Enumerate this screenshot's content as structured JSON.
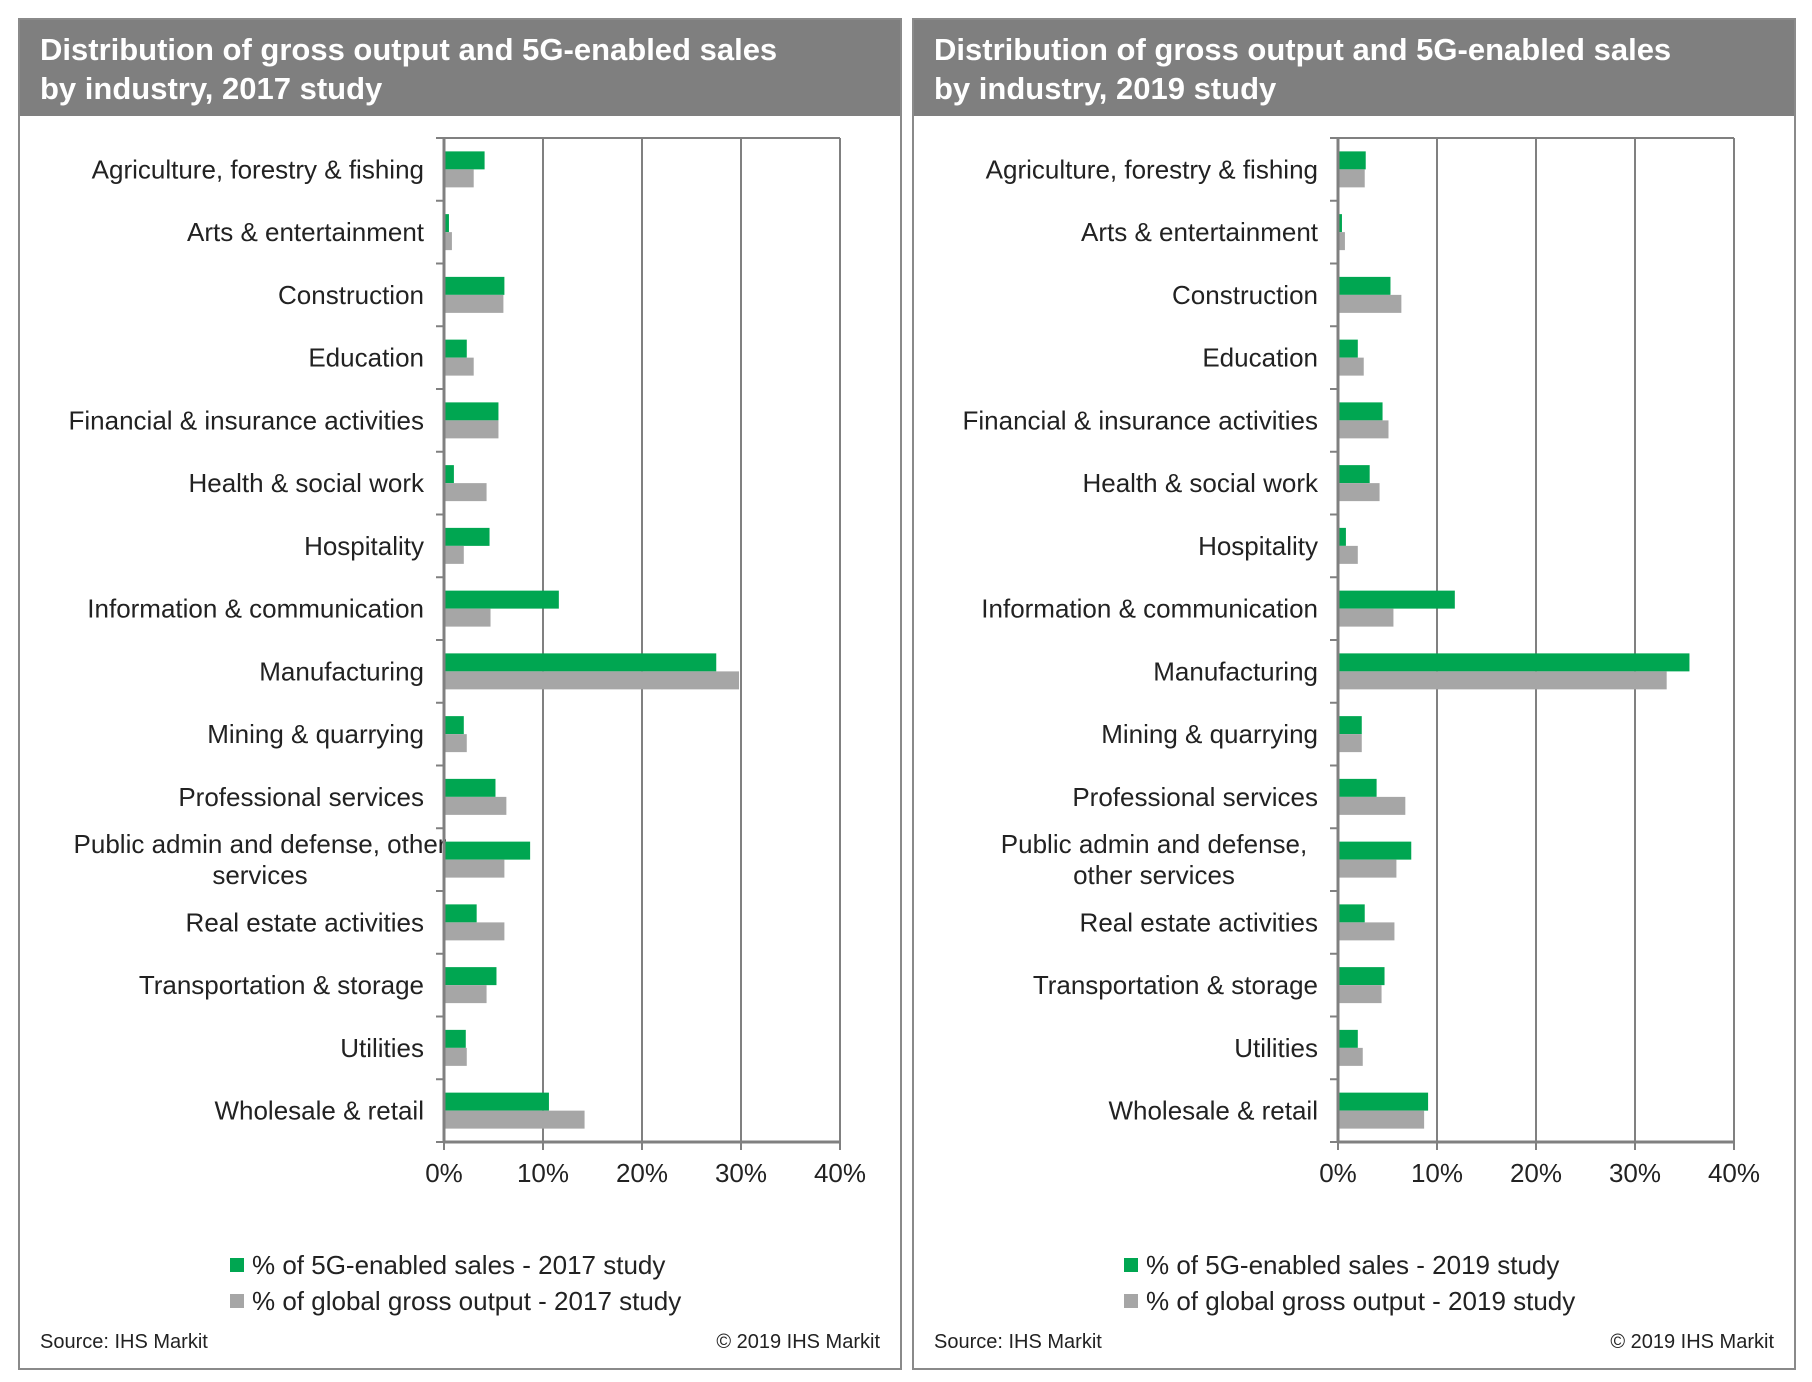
{
  "colors": {
    "sales": "#00a651",
    "output": "#a6a6a6",
    "header": "#7f7f7f",
    "axis": "#808080",
    "grid": "#808080"
  },
  "chart_data": [
    {
      "type": "bar",
      "orientation": "horizontal",
      "title": "Distribution of gross output and 5G-enabled sales by industry, 2017 study",
      "title_lines": [
        "Distribution of gross output and 5G-enabled sales",
        "by industry, 2017 study"
      ],
      "categories": [
        "Agriculture, forestry & fishing",
        "Arts & entertainment",
        "Construction",
        "Education",
        "Financial & insurance activities",
        "Health & social work",
        "Hospitality",
        "Information & communication",
        "Manufacturing",
        "Mining & quarrying",
        "Professional services",
        "Public admin and defense, other services",
        "Real estate activities",
        "Transportation & storage",
        "Utilities",
        "Wholesale & retail"
      ],
      "category_lines": [
        [
          "Agriculture, forestry & fishing"
        ],
        [
          "Arts & entertainment"
        ],
        [
          "Construction"
        ],
        [
          "Education"
        ],
        [
          "Financial & insurance activities"
        ],
        [
          "Health & social work"
        ],
        [
          "Hospitality"
        ],
        [
          "Information & communication"
        ],
        [
          "Manufacturing"
        ],
        [
          "Mining & quarrying"
        ],
        [
          "Professional services"
        ],
        [
          "Public admin and defense, other",
          "services"
        ],
        [
          "Real estate activities"
        ],
        [
          "Transportation & storage"
        ],
        [
          "Utilities"
        ],
        [
          "Wholesale & retail"
        ]
      ],
      "series": [
        {
          "name": "% of 5G-enabled sales - 2017 study",
          "values": [
            4.1,
            0.5,
            6.1,
            2.3,
            5.5,
            1.0,
            4.6,
            11.6,
            27.5,
            2.0,
            5.2,
            8.7,
            3.3,
            5.3,
            2.2,
            10.6
          ]
        },
        {
          "name": "% of global gross output - 2017 study",
          "values": [
            3.0,
            0.8,
            6.0,
            3.0,
            5.5,
            4.3,
            2.0,
            4.7,
            29.8,
            2.3,
            6.3,
            6.1,
            6.1,
            4.3,
            2.3,
            14.2
          ]
        }
      ],
      "xlim": [
        0,
        40
      ],
      "xticks": [
        "0%",
        "10%",
        "20%",
        "30%",
        "40%"
      ],
      "grid": true,
      "legend_position": "bottom"
    },
    {
      "type": "bar",
      "orientation": "horizontal",
      "title": "Distribution of gross output and 5G-enabled sales by industry, 2019 study",
      "title_lines": [
        "Distribution of gross output and 5G-enabled sales",
        "by industry, 2019 study"
      ],
      "categories": [
        "Agriculture, forestry & fishing",
        "Arts & entertainment",
        "Construction",
        "Education",
        "Financial & insurance activities",
        "Health & social work",
        "Hospitality",
        "Information & communication",
        "Manufacturing",
        "Mining & quarrying",
        "Professional services",
        "Public admin and defense, other services",
        "Real estate activities",
        "Transportation & storage",
        "Utilities",
        "Wholesale & retail"
      ],
      "category_lines": [
        [
          "Agriculture, forestry & fishing"
        ],
        [
          "Arts & entertainment"
        ],
        [
          "Construction"
        ],
        [
          "Education"
        ],
        [
          "Financial & insurance activities"
        ],
        [
          "Health & social work"
        ],
        [
          "Hospitality"
        ],
        [
          "Information & communication"
        ],
        [
          "Manufacturing"
        ],
        [
          "Mining & quarrying"
        ],
        [
          "Professional services"
        ],
        [
          "Public admin and defense,",
          "other services"
        ],
        [
          "Real estate activities"
        ],
        [
          "Transportation & storage"
        ],
        [
          "Utilities"
        ],
        [
          "Wholesale & retail"
        ]
      ],
      "series": [
        {
          "name": "% of 5G-enabled sales - 2019 study",
          "values": [
            2.8,
            0.4,
            5.3,
            2.0,
            4.5,
            3.2,
            0.8,
            11.8,
            35.5,
            2.4,
            3.9,
            7.4,
            2.7,
            4.7,
            2.0,
            9.1
          ]
        },
        {
          "name": "% of global gross output - 2019 study",
          "values": [
            2.7,
            0.7,
            6.4,
            2.6,
            5.1,
            4.2,
            2.0,
            5.6,
            33.2,
            2.4,
            6.8,
            5.9,
            5.7,
            4.4,
            2.5,
            8.7
          ]
        }
      ],
      "xlim": [
        0,
        40
      ],
      "xticks": [
        "0%",
        "10%",
        "20%",
        "30%",
        "40%"
      ],
      "grid": true,
      "legend_position": "bottom"
    }
  ],
  "footer": {
    "source": "Source: IHS Markit",
    "copyright": "© 2019 IHS Markit"
  }
}
